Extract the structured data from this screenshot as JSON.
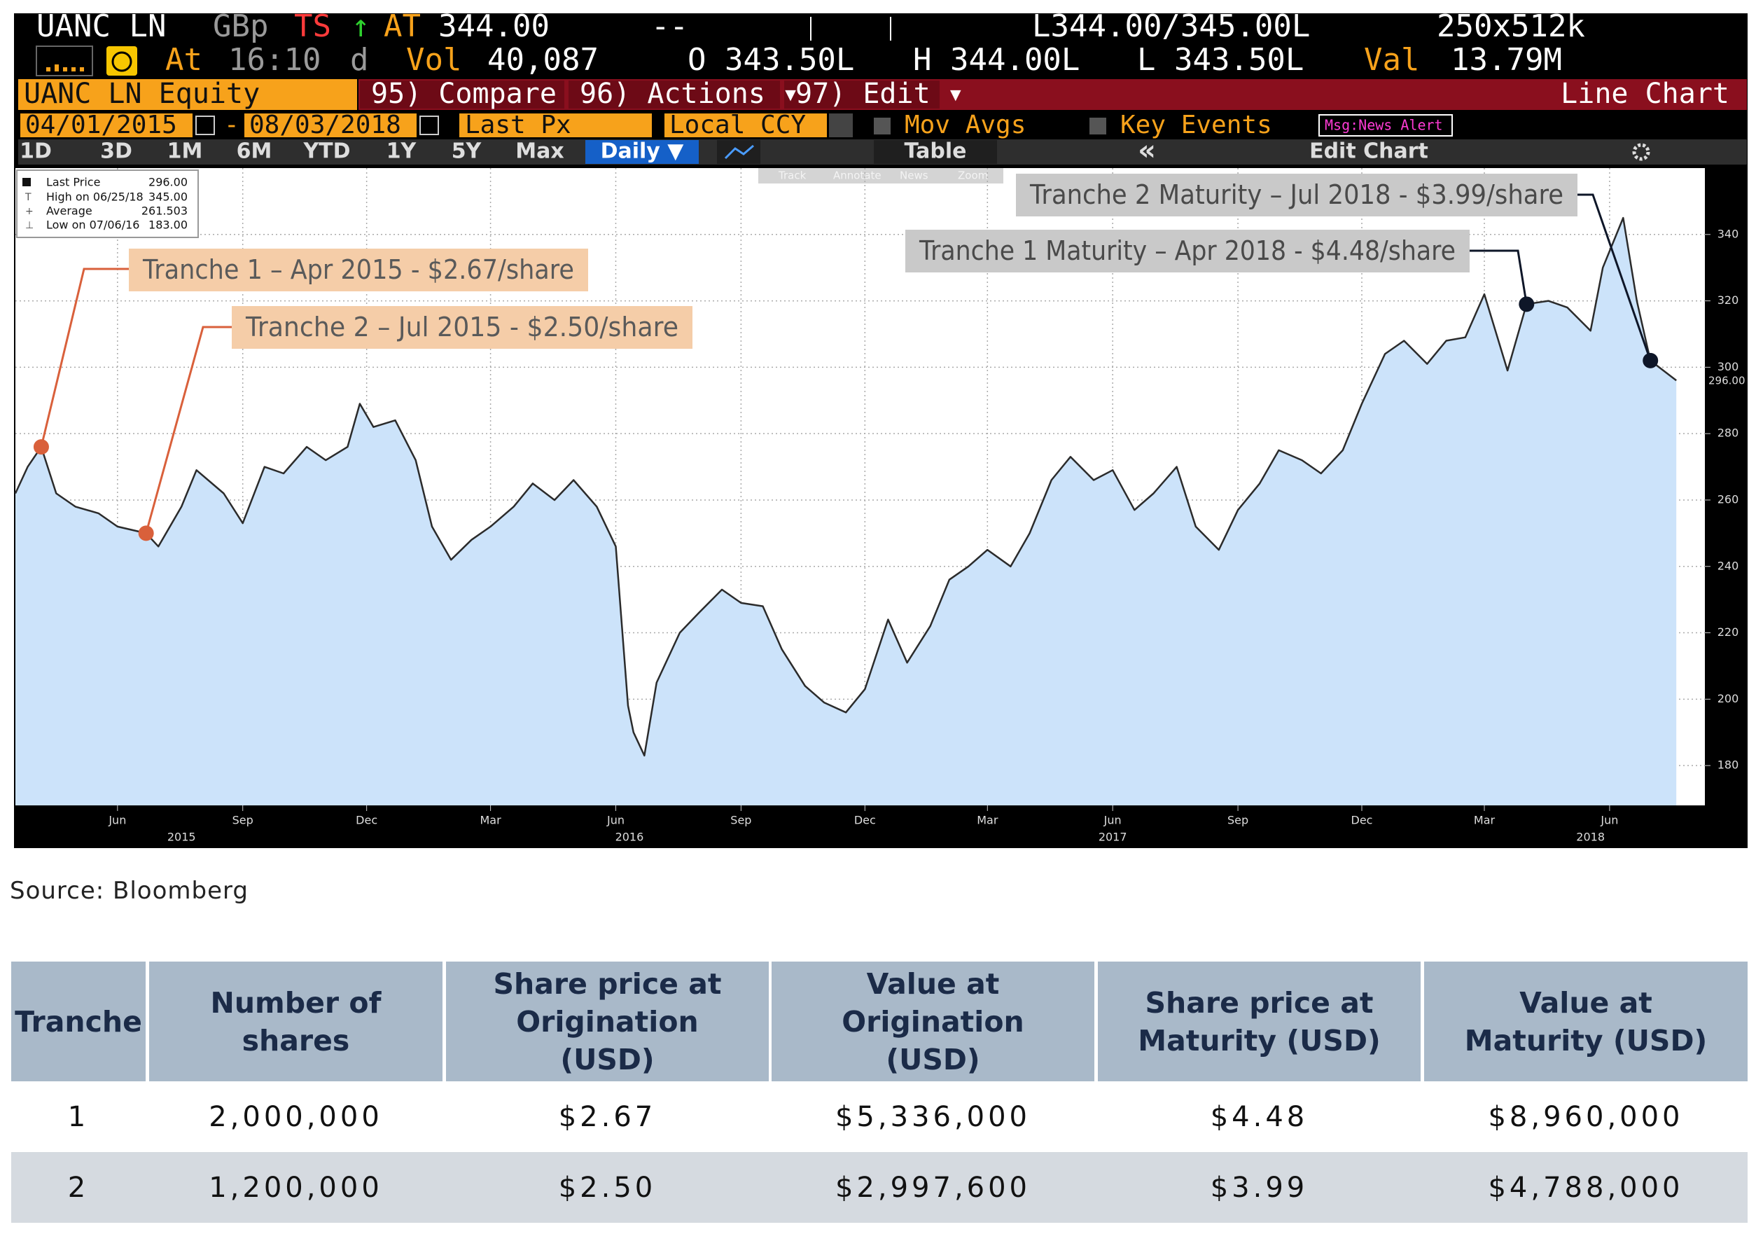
{
  "ticker_bar": {
    "security": "UANC LN",
    "currency": "GBp",
    "ts": "TS",
    "arrow": "↑",
    "at_label": "AT",
    "last": "344.00",
    "dash": "--",
    "bid_ask": "L344.00/345.00L",
    "size": "250x512k"
  },
  "quote_bar": {
    "at_label": "At",
    "time": "16:10",
    "d": "d",
    "vol_label": "Vol",
    "vol": "40,087",
    "open": "O 343.50L",
    "high": "H 344.00L",
    "low": "L 343.50L",
    "val_label": "Val",
    "val": "13.79M"
  },
  "menu_bar": {
    "equity": "UANC LN Equity",
    "compare": "95) Compare",
    "actions": "96) Actions ▾",
    "edit": "97) Edit ▾",
    "chart_type": "Line Chart"
  },
  "settings_bar": {
    "start": "04/01/2015",
    "dash": "-",
    "end": "08/03/2018",
    "field": "Last Px",
    "ccy": "Local CCY",
    "mov_avgs": "Mov Avgs",
    "key_events": "Key Events",
    "news": "Msg:News Alert"
  },
  "range_buttons": [
    "1D",
    "3D",
    "1M",
    "6M",
    "YTD",
    "1Y",
    "5Y",
    "Max"
  ],
  "toolbar": {
    "period": "Daily ▼",
    "table": "Table",
    "collapse": "«",
    "edit_chart": "Edit Chart"
  },
  "chart_tools": [
    "Track",
    "Annotate",
    "News",
    "Zoom"
  ],
  "chart_data": {
    "type": "line",
    "x": [
      "2015-04-01",
      "2015-04-10",
      "2015-04-20",
      "2015-05-01",
      "2015-05-15",
      "2015-06-01",
      "2015-06-15",
      "2015-07-06",
      "2015-07-15",
      "2015-08-01",
      "2015-08-12",
      "2015-09-01",
      "2015-09-15",
      "2015-10-01",
      "2015-10-15",
      "2015-11-01",
      "2015-11-15",
      "2015-12-01",
      "2015-12-10",
      "2015-12-20",
      "2016-01-05",
      "2016-01-20",
      "2016-02-01",
      "2016-02-15",
      "2016-03-01",
      "2016-03-15",
      "2016-04-01",
      "2016-04-15",
      "2016-05-01",
      "2016-05-15",
      "2016-06-01",
      "2016-06-15",
      "2016-06-24",
      "2016-06-28",
      "2016-07-06",
      "2016-07-15",
      "2016-08-01",
      "2016-08-15",
      "2016-09-01",
      "2016-09-15",
      "2016-10-01",
      "2016-10-15",
      "2016-11-01",
      "2016-11-15",
      "2016-12-01",
      "2016-12-15",
      "2017-01-01",
      "2017-01-15",
      "2017-02-01",
      "2017-02-15",
      "2017-03-01",
      "2017-03-15",
      "2017-04-01",
      "2017-04-15",
      "2017-05-01",
      "2017-05-15",
      "2017-06-01",
      "2017-06-15",
      "2017-07-01",
      "2017-07-15",
      "2017-08-01",
      "2017-08-15",
      "2017-09-01",
      "2017-09-15",
      "2017-10-01",
      "2017-10-15",
      "2017-11-01",
      "2017-11-15",
      "2017-12-01",
      "2017-12-15",
      "2018-01-01",
      "2018-01-15",
      "2018-02-01",
      "2018-02-15",
      "2018-03-01",
      "2018-03-15",
      "2018-04-01",
      "2018-04-15",
      "2018-05-01",
      "2018-05-15",
      "2018-06-01",
      "2018-06-10",
      "2018-06-25",
      "2018-07-05",
      "2018-07-15",
      "2018-08-03"
    ],
    "series": [
      {
        "name": "Last Price",
        "color": "#2b2b2b",
        "fill": "#cce3fa",
        "values": [
          262,
          270,
          276,
          262,
          258,
          256,
          252,
          250,
          246,
          258,
          269,
          262,
          253,
          270,
          268,
          276,
          272,
          276,
          289,
          282,
          284,
          272,
          252,
          242,
          248,
          252,
          258,
          265,
          260,
          266,
          258,
          246,
          198,
          190,
          183,
          205,
          220,
          226,
          233,
          229,
          228,
          215,
          204,
          199,
          196,
          203,
          224,
          211,
          222,
          236,
          240,
          245,
          240,
          250,
          266,
          273,
          266,
          269,
          257,
          262,
          270,
          252,
          245,
          257,
          265,
          275,
          272,
          268,
          275,
          289,
          304,
          308,
          301,
          308,
          309,
          322,
          299,
          319,
          320,
          318,
          311,
          330,
          345,
          320,
          302,
          296
        ]
      }
    ],
    "legend_stats": [
      {
        "label": "High on 06/25/18",
        "value": "345.00"
      },
      {
        "label": "Average",
        "value": "261.503"
      },
      {
        "label": "Low on 07/06/16",
        "value": "183.00"
      }
    ],
    "last_value_label": "296.00",
    "xlim": [
      "2015-04-01",
      "2018-08-24"
    ],
    "ylim": [
      168,
      360
    ],
    "yticks": [
      180,
      200,
      220,
      240,
      260,
      280,
      300,
      320,
      340
    ],
    "xticks": [
      {
        "value": "2015-06-15",
        "label": "Jun"
      },
      {
        "value": "2015-09-15",
        "label": "Sep"
      },
      {
        "value": "2015-12-15",
        "label": "Dec"
      },
      {
        "value": "2016-03-15",
        "label": "Mar"
      },
      {
        "value": "2016-06-15",
        "label": "Jun"
      },
      {
        "value": "2016-09-15",
        "label": "Sep"
      },
      {
        "value": "2016-12-15",
        "label": "Dec"
      },
      {
        "value": "2017-03-15",
        "label": "Mar"
      },
      {
        "value": "2017-06-15",
        "label": "Jun"
      },
      {
        "value": "2017-09-15",
        "label": "Sep"
      },
      {
        "value": "2017-12-15",
        "label": "Dec"
      },
      {
        "value": "2018-03-15",
        "label": "Mar"
      },
      {
        "value": "2018-06-15",
        "label": "Jun"
      }
    ],
    "year_labels": [
      {
        "value": "2015-08-01",
        "label": "2015"
      },
      {
        "value": "2016-06-25",
        "label": "2016"
      },
      {
        "value": "2017-06-15",
        "label": "2017"
      },
      {
        "value": "2018-06-01",
        "label": "2018"
      }
    ],
    "grid": true,
    "annotations": [
      {
        "text": "Tranche 1 – Apr 2015 - $2.67/share",
        "x": "2015-04-20",
        "y": 276,
        "color": "#d9603b"
      },
      {
        "text": "Tranche 2 – Jul 2015 - $2.50/share",
        "x": "2015-07-06",
        "y": 250,
        "color": "#d9603b"
      },
      {
        "text": "Tranche 2 Maturity – Jul  2018 - $3.99/share",
        "x": "2018-07-15",
        "y": 302,
        "color": "#0e1628"
      },
      {
        "text": "Tranche 1 Maturity – Apr 2018 - $4.48/share",
        "x": "2018-04-15",
        "y": 319,
        "color": "#0e1628"
      }
    ]
  },
  "source": "Source: Bloomberg",
  "table": {
    "header": [
      "Tranche",
      "Number of shares",
      "Share price at Origination (USD)",
      "Value at Origination (USD)",
      "Share price at Maturity (USD)",
      "Value at Maturity (USD)"
    ],
    "rows": [
      [
        "1",
        "2,000,000",
        "$2.67",
        "$5,336,000",
        "$4.48",
        "$8,960,000"
      ],
      [
        "2",
        "1,200,000",
        "$2.50",
        "$2,997,600",
        "$3.99",
        "$4,788,000"
      ]
    ]
  }
}
